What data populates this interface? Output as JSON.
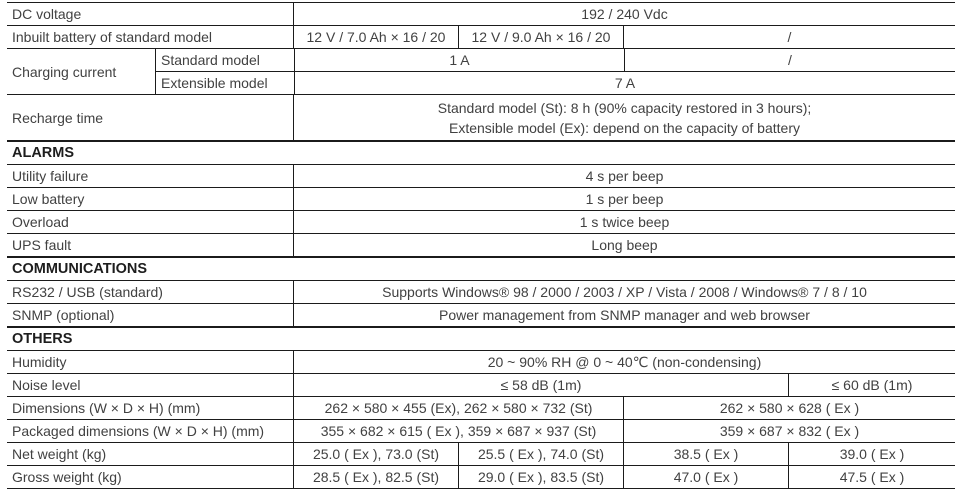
{
  "colors": {
    "border": "#1b1b1b",
    "text": "#414141",
    "section_text": "#1d1d1d",
    "background": "#ffffff"
  },
  "table": {
    "sections": {
      "alarms": "ALARMS",
      "communications": "COMMUNICATIONS",
      "others": "OTHERS"
    },
    "dc": {
      "label": "DC voltage",
      "value": "192 / 240 Vdc"
    },
    "battery": {
      "label": "Inbuilt battery of standard model",
      "v1": "12 V / 7.0 Ah × 16 / 20",
      "v2": "12 V / 9.0 Ah × 16 / 20",
      "v3": "/"
    },
    "charging": {
      "label": "Charging current",
      "standard_label": "Standard model",
      "standard_v1": "1 A",
      "standard_v2": "/",
      "extensible_label": "Extensible model",
      "extensible_v": "7 A"
    },
    "recharge": {
      "label": "Recharge time",
      "line1": "Standard model (St): 8 h (90% capacity restored in 3 hours);",
      "line2": "Extensible model (Ex): depend on the capacity of battery"
    },
    "utility": {
      "label": "Utility failure",
      "value": "4 s per beep"
    },
    "low_battery": {
      "label": "Low battery",
      "value": "1 s per beep"
    },
    "overload": {
      "label": "Overload",
      "value": "1 s twice beep"
    },
    "ups_fault": {
      "label": "UPS fault",
      "value": "Long beep"
    },
    "rs232": {
      "label": "RS232 / USB (standard)",
      "value": "Supports Windows® 98 / 2000 / 2003 / XP / Vista / 2008 / Windows® 7 / 8 / 10"
    },
    "snmp": {
      "label": "SNMP (optional)",
      "value": "Power management from SNMP manager and web browser"
    },
    "humidity": {
      "label": "Humidity",
      "value": "20 ~ 90% RH @ 0 ~ 40℃ (non-condensing)"
    },
    "noise": {
      "label": "Noise level",
      "v1": "≤ 58 dB (1m)",
      "v2": "≤ 60 dB (1m)"
    },
    "dimensions": {
      "label": "Dimensions (W × D × H) (mm)",
      "v1": "262 × 580 × 455 (Ex), 262 × 580 × 732 (St)",
      "v2": "262 × 580 × 628 ( Ex )"
    },
    "packaged": {
      "label": "Packaged dimensions (W × D × H) (mm)",
      "v1": "355 × 682 × 615 ( Ex ), 359 × 687 × 937 (St)",
      "v2": "359 × 687 × 832 ( Ex )"
    },
    "net_weight": {
      "label": "Net weight (kg)",
      "v1": "25.0 ( Ex ), 73.0 (St)",
      "v2": "25.5 ( Ex ), 74.0 (St)",
      "v3": "38.5 ( Ex )",
      "v4": "39.0 ( Ex )"
    },
    "gross_weight": {
      "label": "Gross weight (kg)",
      "v1": "28.5 ( Ex ), 82.5 (St)",
      "v2": "29.0 ( Ex ), 83.5 (St)",
      "v3": "47.0 ( Ex )",
      "v4": "47.5 ( Ex )"
    }
  }
}
